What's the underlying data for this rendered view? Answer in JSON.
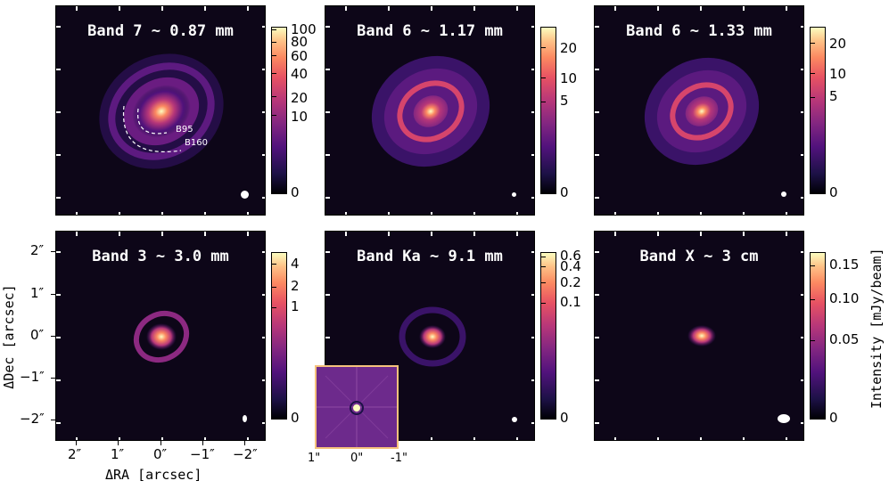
{
  "chart_data": [
    {
      "type": "heatmap",
      "title": "Band 7 ~ 0.87 mm",
      "colorbar_ticks": [
        "100",
        "80",
        "60",
        "40",
        "20",
        "10",
        "0"
      ],
      "annotations": [
        "B95",
        "B160"
      ],
      "structure": "bright core with two faint rings"
    },
    {
      "type": "heatmap",
      "title": "Band 6 ~ 1.17 mm",
      "colorbar_ticks": [
        "20",
        "10",
        "5",
        "0"
      ],
      "structure": "bright core with ring"
    },
    {
      "type": "heatmap",
      "title": "Band 6 ~ 1.33 mm",
      "colorbar_ticks": [
        "20",
        "10",
        "5",
        "0"
      ],
      "structure": "bright core with ring"
    },
    {
      "type": "heatmap",
      "title": "Band 3 ~ 3.0 mm",
      "colorbar_ticks": [
        "4",
        "2",
        "1",
        "0"
      ],
      "structure": "compact core with ring"
    },
    {
      "type": "heatmap",
      "title": "Band Ka ~ 9.1 mm",
      "colorbar_ticks": [
        "0.6",
        "0.4",
        "0.2",
        "0.1",
        "0"
      ],
      "structure": "compact core with faint ring",
      "inset_ticks": [
        "1\"",
        "0\"",
        "-1\""
      ]
    },
    {
      "type": "heatmap",
      "title": "Band X ~ 3 cm",
      "colorbar_ticks": [
        "0.15",
        "0.10",
        "0.05",
        "0"
      ],
      "colorbar_label": "Intensity [mJy/beam]",
      "structure": "compact point source"
    }
  ],
  "axes": {
    "xlabel": "ΔRA [arcsec]",
    "ylabel": "ΔDec [arcsec]",
    "xticks": [
      "2″",
      "1″",
      "0″",
      "−1″",
      "−2″"
    ],
    "yticks": [
      "2″",
      "1″",
      "0″",
      "−1″",
      "−2″"
    ]
  },
  "colormap": "magma"
}
